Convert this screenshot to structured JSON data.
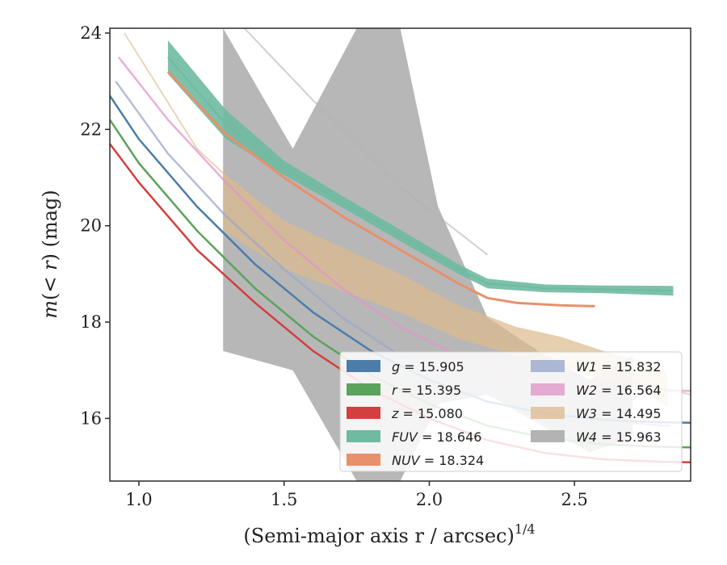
{
  "chart_data": {
    "type": "line",
    "xlabel": "(Semi-major axis r / arcsec)",
    "xlabel_exponent": "1/4",
    "ylabel_parts": [
      "m",
      "(",
      "< ",
      "r",
      ") (mag)"
    ],
    "xlim": [
      0.9,
      2.9
    ],
    "ylim": [
      24.1,
      14.7
    ],
    "y_inverted": true,
    "xticks": [
      1.0,
      1.5,
      2.0,
      2.5
    ],
    "xtick_labels": [
      "1.0",
      "1.5",
      "2.0",
      "2.5"
    ],
    "yticks": [
      16,
      18,
      20,
      22,
      24
    ],
    "ytick_labels": [
      "16",
      "18",
      "20",
      "22",
      "24"
    ],
    "grid": false,
    "legend_position": "lower right",
    "legend_columns": 2,
    "series": [
      {
        "band": "g",
        "value": "15.905",
        "color": "#4c7daa",
        "x": [
          0.9,
          1.0,
          1.2,
          1.4,
          1.6,
          1.8,
          2.0,
          2.2,
          2.4,
          2.6,
          2.8,
          2.9
        ],
        "y": [
          22.7,
          21.8,
          20.4,
          19.2,
          18.2,
          17.4,
          16.8,
          16.35,
          16.1,
          15.97,
          15.92,
          15.91
        ],
        "fit": {
          "x": [
            2.9
          ],
          "y": [
            15.91
          ]
        }
      },
      {
        "band": "r",
        "value": "15.395",
        "color": "#5aa35a",
        "x": [
          0.9,
          1.0,
          1.2,
          1.4,
          1.6,
          1.8,
          2.0,
          2.2,
          2.4,
          2.6,
          2.8,
          2.9
        ],
        "y": [
          22.2,
          21.3,
          19.9,
          18.7,
          17.7,
          16.9,
          16.3,
          15.85,
          15.6,
          15.46,
          15.41,
          15.4
        ]
      },
      {
        "band": "z",
        "value": "15.080",
        "color": "#d33f3f",
        "x": [
          0.9,
          1.0,
          1.2,
          1.4,
          1.6,
          1.8,
          2.0,
          2.2,
          2.4,
          2.6,
          2.8,
          2.9
        ],
        "y": [
          21.7,
          20.9,
          19.5,
          18.4,
          17.4,
          16.6,
          16.0,
          15.55,
          15.28,
          15.15,
          15.1,
          15.09
        ]
      },
      {
        "band": "FUV",
        "value": "18.646",
        "color": "#6fbaa1",
        "x": [
          1.1,
          1.3,
          1.5,
          1.7,
          1.9,
          2.1,
          2.2,
          2.4,
          2.6,
          2.84
        ],
        "y": [
          23.5,
          22.1,
          21.2,
          20.5,
          19.8,
          19.1,
          18.8,
          18.7,
          18.68,
          18.65
        ],
        "band_width": [
          0.35,
          0.3,
          0.15,
          0.12,
          0.12,
          0.1,
          0.1,
          0.08,
          0.08,
          0.1
        ]
      },
      {
        "band": "NUV",
        "value": "18.324",
        "color": "#e8906b",
        "x": [
          1.1,
          1.3,
          1.5,
          1.7,
          1.9,
          2.1,
          2.2,
          2.3,
          2.45,
          2.57
        ],
        "y": [
          23.2,
          21.9,
          21.0,
          20.2,
          19.5,
          18.8,
          18.5,
          18.4,
          18.35,
          18.33
        ]
      },
      {
        "band": "W1",
        "value": "15.832",
        "color": "#9aa8cc",
        "x": [
          0.92,
          1.1,
          1.3,
          1.5,
          1.7,
          1.9,
          2.1,
          2.3,
          2.5,
          2.7,
          2.83
        ],
        "y": [
          23.0,
          21.5,
          20.2,
          19.1,
          18.1,
          17.3,
          16.7,
          16.3,
          16.05,
          15.9,
          15.84
        ]
      },
      {
        "band": "W2",
        "value": "16.564",
        "color": "#e097c8",
        "x": [
          0.93,
          1.1,
          1.3,
          1.5,
          1.7,
          1.9,
          2.1,
          2.3,
          2.5,
          2.7,
          2.9
        ],
        "y": [
          23.5,
          22.2,
          20.9,
          19.7,
          18.7,
          17.9,
          17.3,
          16.9,
          16.7,
          16.6,
          16.57
        ]
      },
      {
        "band": "W3",
        "value": "14.495",
        "color": "#dcb98c",
        "x": [
          1.29,
          1.5,
          1.7,
          1.9,
          2.1,
          2.3,
          2.45,
          2.6,
          2.7,
          2.82
        ],
        "y": [
          20.5,
          19.6,
          19.1,
          18.6,
          18.0,
          17.6,
          17.4,
          17.1,
          16.95,
          16.6
        ],
        "band_width": [
          0.6,
          0.5,
          0.45,
          0.4,
          0.35,
          0.3,
          0.3,
          0.3,
          0.3,
          0.35
        ],
        "fit": {
          "x": [
            0.95,
            1.2,
            1.5,
            1.8,
            2.1,
            2.4,
            2.7,
            2.9
          ],
          "y": [
            24.0,
            21.6,
            19.9,
            18.7,
            17.8,
            17.2,
            16.75,
            16.5
          ]
        }
      },
      {
        "band": "W4",
        "value": "15.963",
        "color": "#b3b3b3",
        "upper": {
          "x": [
            1.29,
            1.53,
            1.75,
            1.9,
            2.03,
            2.2,
            2.4,
            2.55,
            2.7
          ],
          "y": [
            17.4,
            17.0,
            14.7,
            14.7,
            16.3,
            16.5,
            15.8,
            15.3,
            15.6
          ]
        },
        "lower": {
          "x": [
            2.7,
            2.55,
            2.4,
            2.2,
            2.03,
            1.9,
            1.75,
            1.53,
            1.29
          ],
          "y": [
            17.3,
            16.8,
            17.3,
            18.1,
            20.4,
            24.1,
            24.1,
            21.6,
            24.1
          ]
        },
        "fit": {
          "x": [
            1.0,
            1.3,
            1.6,
            1.9,
            2.2
          ],
          "y": [
            26.0,
            24.5,
            22.6,
            20.8,
            19.4
          ]
        }
      }
    ]
  }
}
